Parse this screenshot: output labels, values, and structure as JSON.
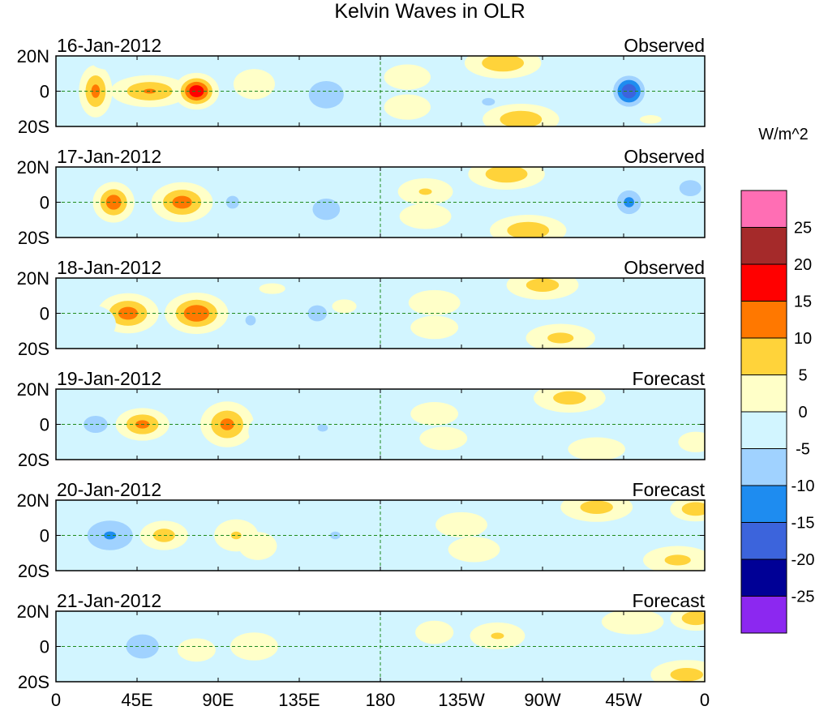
{
  "chart_data": {
    "type": "heatmap",
    "title": "Kelvin Waves in OLR",
    "units": "W/m^2",
    "panels": [
      {
        "date": "16-Jan-2012",
        "status": "Observed"
      },
      {
        "date": "17-Jan-2012",
        "status": "Observed"
      },
      {
        "date": "18-Jan-2012",
        "status": "Observed"
      },
      {
        "date": "19-Jan-2012",
        "status": "Forecast"
      },
      {
        "date": "20-Jan-2012",
        "status": "Forecast"
      },
      {
        "date": "21-Jan-2012",
        "status": "Forecast"
      }
    ],
    "x_ticks": [
      "0",
      "45E",
      "90E",
      "135E",
      "180",
      "135W",
      "90W",
      "45W",
      "0"
    ],
    "x_tick_values": [
      0,
      45,
      90,
      135,
      180,
      225,
      270,
      315,
      360
    ],
    "y_ticks": [
      "20N",
      "0",
      "20S"
    ],
    "y_tick_values": [
      20,
      0,
      -20
    ],
    "xlim": [
      0,
      360
    ],
    "ylim": [
      -20,
      20
    ],
    "colorbar": {
      "labels": [
        "25",
        "20",
        "15",
        "10",
        "5",
        "0",
        "-5",
        "-10",
        "-15",
        "-20",
        "-25"
      ],
      "colors": [
        "#ff6eb4",
        "#a52a2a",
        "#ff0000",
        "#ff7800",
        "#ffd33a",
        "#ffffc8",
        "#d2f5ff",
        "#a0d2ff",
        "#1e8cf0",
        "#3c64dc",
        "#000096",
        "#8c28f0"
      ]
    },
    "anomalies": [
      [
        [
          22,
          0,
          5,
          8,
          14
        ],
        [
          52,
          0,
          12,
          5,
          13
        ],
        [
          78,
          0,
          6,
          5,
          22
        ],
        [
          110,
          4,
          8,
          6,
          7
        ],
        [
          150,
          -2,
          10,
          8,
          -12
        ],
        [
          195,
          8,
          9,
          5,
          7
        ],
        [
          195,
          -9,
          9,
          5,
          7
        ],
        [
          240,
          -6,
          10,
          6,
          -8
        ],
        [
          248,
          16,
          12,
          5,
          12
        ],
        [
          258,
          -16,
          12,
          5,
          12
        ],
        [
          280,
          4,
          8,
          10,
          -6
        ],
        [
          318,
          0,
          6,
          6,
          -22
        ],
        [
          340,
          -8,
          14,
          6,
          -4
        ],
        [
          30,
          16,
          10,
          4,
          -4
        ],
        [
          330,
          -16,
          10,
          4,
          3
        ]
      ],
      [
        [
          32,
          0,
          6,
          6,
          16
        ],
        [
          70,
          0,
          9,
          6,
          15
        ],
        [
          98,
          0,
          6,
          6,
          -9
        ],
        [
          112,
          -6,
          8,
          6,
          -6
        ],
        [
          150,
          -4,
          10,
          8,
          -10
        ],
        [
          205,
          6,
          10,
          5,
          8
        ],
        [
          205,
          -8,
          10,
          5,
          7
        ],
        [
          250,
          16,
          12,
          5,
          12
        ],
        [
          262,
          -16,
          12,
          5,
          12
        ],
        [
          318,
          0,
          6,
          6,
          -14
        ],
        [
          352,
          8,
          8,
          6,
          -10
        ],
        [
          340,
          -8,
          10,
          6,
          -5
        ]
      ],
      [
        [
          40,
          0,
          9,
          6,
          15
        ],
        [
          78,
          0,
          9,
          6,
          17
        ],
        [
          108,
          -4,
          8,
          8,
          -8
        ],
        [
          145,
          0,
          7,
          6,
          -10
        ],
        [
          160,
          4,
          7,
          4,
          4
        ],
        [
          210,
          6,
          10,
          5,
          7
        ],
        [
          210,
          -8,
          10,
          5,
          6
        ],
        [
          236,
          0,
          8,
          6,
          -6
        ],
        [
          270,
          16,
          12,
          5,
          10
        ],
        [
          280,
          -14,
          12,
          5,
          9
        ],
        [
          335,
          0,
          10,
          7,
          -5
        ],
        [
          20,
          -6,
          10,
          8,
          -6
        ],
        [
          120,
          14,
          12,
          5,
          3
        ]
      ],
      [
        [
          22,
          0,
          11,
          8,
          -9
        ],
        [
          48,
          0,
          8,
          5,
          14
        ],
        [
          95,
          0,
          8,
          7,
          14
        ],
        [
          120,
          -4,
          10,
          8,
          -6
        ],
        [
          148,
          -2,
          8,
          6,
          -8
        ],
        [
          160,
          6,
          10,
          4,
          -6
        ],
        [
          190,
          0,
          8,
          6,
          -5
        ],
        [
          210,
          6,
          10,
          5,
          6
        ],
        [
          215,
          -8,
          10,
          5,
          6
        ],
        [
          245,
          0,
          10,
          6,
          -5
        ],
        [
          285,
          15,
          12,
          5,
          10
        ],
        [
          300,
          -14,
          12,
          5,
          6
        ],
        [
          345,
          10,
          10,
          6,
          -4
        ],
        [
          355,
          -10,
          10,
          6,
          4
        ]
      ],
      [
        [
          30,
          0,
          12,
          8,
          -13
        ],
        [
          60,
          0,
          8,
          5,
          10
        ],
        [
          100,
          0,
          8,
          6,
          8
        ],
        [
          112,
          -6,
          8,
          6,
          6
        ],
        [
          155,
          0,
          8,
          6,
          -8
        ],
        [
          190,
          6,
          8,
          5,
          -5
        ],
        [
          205,
          -2,
          8,
          5,
          -6
        ],
        [
          225,
          6,
          10,
          5,
          7
        ],
        [
          232,
          -8,
          10,
          5,
          7
        ],
        [
          265,
          4,
          8,
          6,
          -5
        ],
        [
          300,
          16,
          12,
          5,
          10
        ],
        [
          345,
          -14,
          12,
          5,
          9
        ],
        [
          355,
          15,
          8,
          4,
          12
        ]
      ],
      [
        [
          48,
          0,
          12,
          9,
          -10
        ],
        [
          78,
          -2,
          8,
          5,
          6
        ],
        [
          110,
          0,
          10,
          6,
          6
        ],
        [
          140,
          -4,
          8,
          6,
          -6
        ],
        [
          185,
          0,
          10,
          6,
          -7
        ],
        [
          210,
          8,
          8,
          5,
          6
        ],
        [
          230,
          -6,
          10,
          5,
          -5
        ],
        [
          245,
          6,
          10,
          5,
          8
        ],
        [
          290,
          -4,
          10,
          6,
          -5
        ],
        [
          320,
          14,
          12,
          5,
          7
        ],
        [
          350,
          -16,
          12,
          5,
          10
        ],
        [
          355,
          16,
          8,
          4,
          12
        ]
      ]
    ]
  }
}
